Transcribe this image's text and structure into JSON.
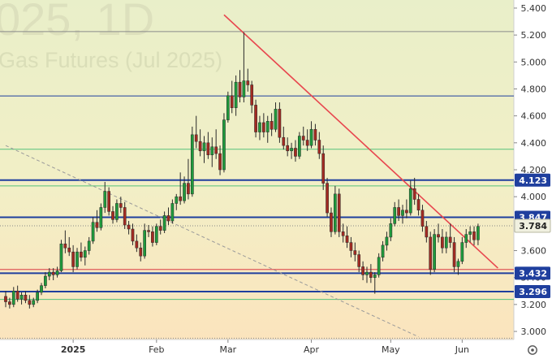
{
  "watermark": {
    "line1": "025, 1D",
    "line2": "Gas Futures (Jul 2025)"
  },
  "colors": {
    "plot_bg_top": "#e9efc9",
    "plot_bg_bottom": "#fbe6bf",
    "axis_bg": "#ffffff",
    "candle_up": "#1f9a3c",
    "candle_down": "#a32a22",
    "trend_red": "#e8474f",
    "dashed_grey": "#9a9a9a",
    "level_blue": "#1f3f9e",
    "level_green": "#55c27a",
    "level_red": "#e05a5a",
    "label_blue": "#1f3f9e",
    "label_price": "#f0f0e0"
  },
  "chart_data": {
    "type": "candlestick",
    "title": "",
    "xlabel": "",
    "ylabel": "",
    "ylim": [
      2.94,
      5.46
    ],
    "y_ticks": [
      5.4,
      5.2,
      5.0,
      4.8,
      4.6,
      4.4,
      4.2,
      4.0,
      3.6,
      3.4,
      3.2,
      3.0
    ],
    "y_tick_labels": [
      "5.400",
      "5.200",
      "5.000",
      "4.800",
      "4.600",
      "4.400",
      "4.200",
      "4.000",
      "3.600",
      "3.400",
      "3.200",
      "3.000"
    ],
    "x_tick_labels": [
      "2025",
      "Feb",
      "Mar",
      "Apr",
      "May",
      "Jun"
    ],
    "x_tick_index": [
      17,
      38,
      56,
      77,
      97,
      115
    ],
    "price_labels": [
      {
        "value": 4.123,
        "label": "4.123",
        "style": "blue"
      },
      {
        "value": 3.847,
        "label": "3.847",
        "style": "blue"
      },
      {
        "value": 3.784,
        "label": "3.784",
        "style": "price"
      },
      {
        "value": 3.432,
        "label": "3.432",
        "style": "blue"
      },
      {
        "value": 3.296,
        "label": "3.296",
        "style": "blue"
      }
    ],
    "horizontal_levels": [
      {
        "value": 5.226,
        "color": "grey"
      },
      {
        "value": 4.748,
        "color": "blue"
      },
      {
        "value": 4.352,
        "color": "green"
      },
      {
        "value": 4.123,
        "color": "blue_thick"
      },
      {
        "value": 4.08,
        "color": "green"
      },
      {
        "value": 3.847,
        "color": "blue_thick"
      },
      {
        "value": 3.784,
        "color": "dotted"
      },
      {
        "value": 3.46,
        "color": "red"
      },
      {
        "value": 3.432,
        "color": "blue_thick"
      },
      {
        "value": 3.296,
        "color": "blue_thick"
      },
      {
        "value": 3.238,
        "color": "green"
      },
      {
        "value": 2.95,
        "color": "dotted"
      }
    ],
    "trend_lines": [
      {
        "style": "solid",
        "color": "red",
        "from": {
          "i": 55,
          "v": 5.35
        },
        "to": {
          "i": 124,
          "v": 3.47
        }
      },
      {
        "style": "dashed",
        "color": "grey",
        "from": {
          "i": 0,
          "v": 4.38
        },
        "to": {
          "i": 104,
          "v": 2.96
        }
      }
    ],
    "candles": [
      [
        0,
        3.26,
        3.3,
        3.18,
        3.22
      ],
      [
        1,
        3.22,
        3.25,
        3.17,
        3.2
      ],
      [
        2,
        3.2,
        3.33,
        3.18,
        3.3
      ],
      [
        3,
        3.3,
        3.34,
        3.22,
        3.24
      ],
      [
        4,
        3.24,
        3.29,
        3.2,
        3.27
      ],
      [
        5,
        3.27,
        3.3,
        3.21,
        3.23
      ],
      [
        6,
        3.23,
        3.27,
        3.17,
        3.2
      ],
      [
        7,
        3.2,
        3.25,
        3.18,
        3.23
      ],
      [
        8,
        3.23,
        3.31,
        3.21,
        3.29
      ],
      [
        9,
        3.29,
        3.36,
        3.27,
        3.34
      ],
      [
        10,
        3.34,
        3.44,
        3.32,
        3.41
      ],
      [
        11,
        3.41,
        3.47,
        3.38,
        3.44
      ],
      [
        12,
        3.44,
        3.47,
        3.38,
        3.42
      ],
      [
        13,
        3.42,
        3.48,
        3.4,
        3.45
      ],
      [
        14,
        3.45,
        3.68,
        3.44,
        3.65
      ],
      [
        15,
        3.65,
        3.75,
        3.58,
        3.62
      ],
      [
        16,
        3.62,
        3.7,
        3.56,
        3.59
      ],
      [
        17,
        3.59,
        3.64,
        3.44,
        3.48
      ],
      [
        18,
        3.48,
        3.62,
        3.46,
        3.59
      ],
      [
        19,
        3.59,
        3.66,
        3.52,
        3.55
      ],
      [
        20,
        3.55,
        3.63,
        3.49,
        3.6
      ],
      [
        21,
        3.6,
        3.7,
        3.57,
        3.67
      ],
      [
        22,
        3.67,
        3.85,
        3.65,
        3.81
      ],
      [
        23,
        3.81,
        3.9,
        3.74,
        3.77
      ],
      [
        24,
        3.77,
        3.95,
        3.75,
        3.92
      ],
      [
        25,
        3.92,
        4.11,
        3.88,
        4.04
      ],
      [
        26,
        4.04,
        4.07,
        3.86,
        3.89
      ],
      [
        27,
        3.89,
        3.93,
        3.8,
        3.83
      ],
      [
        28,
        3.83,
        3.98,
        3.81,
        3.95
      ],
      [
        29,
        3.95,
        4.0,
        3.88,
        3.92
      ],
      [
        30,
        3.92,
        3.96,
        3.76,
        3.79
      ],
      [
        31,
        3.79,
        3.82,
        3.72,
        3.76
      ],
      [
        32,
        3.76,
        3.8,
        3.64,
        3.67
      ],
      [
        33,
        3.67,
        3.72,
        3.59,
        3.62
      ],
      [
        34,
        3.62,
        3.66,
        3.52,
        3.56
      ],
      [
        35,
        3.56,
        3.8,
        3.54,
        3.75
      ],
      [
        36,
        3.75,
        3.79,
        3.7,
        3.74
      ],
      [
        37,
        3.74,
        3.78,
        3.63,
        3.66
      ],
      [
        38,
        3.66,
        3.8,
        3.64,
        3.78
      ],
      [
        39,
        3.78,
        3.83,
        3.72,
        3.75
      ],
      [
        40,
        3.75,
        3.89,
        3.73,
        3.86
      ],
      [
        41,
        3.86,
        3.92,
        3.79,
        3.82
      ],
      [
        42,
        3.82,
        3.98,
        3.8,
        3.95
      ],
      [
        43,
        3.95,
        4.02,
        3.9,
        4.0
      ],
      [
        44,
        4.0,
        4.18,
        3.94,
        3.97
      ],
      [
        45,
        3.97,
        4.15,
        3.95,
        4.1
      ],
      [
        46,
        4.1,
        4.28,
        3.98,
        4.02
      ],
      [
        47,
        4.02,
        4.52,
        4.0,
        4.46
      ],
      [
        48,
        4.46,
        4.6,
        4.36,
        4.41
      ],
      [
        49,
        4.41,
        4.5,
        4.3,
        4.34
      ],
      [
        50,
        4.34,
        4.45,
        4.25,
        4.4
      ],
      [
        51,
        4.4,
        4.48,
        4.28,
        4.31
      ],
      [
        52,
        4.31,
        4.44,
        4.22,
        4.37
      ],
      [
        53,
        4.37,
        4.5,
        4.28,
        4.32
      ],
      [
        54,
        4.32,
        4.38,
        4.16,
        4.2
      ],
      [
        55,
        4.2,
        4.62,
        4.18,
        4.57
      ],
      [
        56,
        4.57,
        4.78,
        4.55,
        4.75
      ],
      [
        57,
        4.75,
        4.86,
        4.62,
        4.66
      ],
      [
        58,
        4.66,
        4.9,
        4.6,
        4.85
      ],
      [
        59,
        4.85,
        4.94,
        4.7,
        4.74
      ],
      [
        60,
        4.74,
        5.22,
        4.7,
        4.86
      ],
      [
        61,
        4.86,
        4.95,
        4.78,
        4.83
      ],
      [
        62,
        4.83,
        4.86,
        4.62,
        4.68
      ],
      [
        63,
        4.68,
        4.72,
        4.44,
        4.48
      ],
      [
        64,
        4.48,
        4.6,
        4.42,
        4.55
      ],
      [
        65,
        4.55,
        4.62,
        4.44,
        4.48
      ],
      [
        66,
        4.48,
        4.6,
        4.4,
        4.56
      ],
      [
        67,
        4.56,
        4.62,
        4.45,
        4.5
      ],
      [
        68,
        4.5,
        4.7,
        4.48,
        4.65
      ],
      [
        69,
        4.65,
        4.7,
        4.4,
        4.44
      ],
      [
        70,
        4.44,
        4.52,
        4.35,
        4.38
      ],
      [
        71,
        4.38,
        4.44,
        4.3,
        4.34
      ],
      [
        72,
        4.34,
        4.4,
        4.28,
        4.36
      ],
      [
        73,
        4.36,
        4.42,
        4.26,
        4.3
      ],
      [
        74,
        4.3,
        4.48,
        4.28,
        4.45
      ],
      [
        75,
        4.45,
        4.52,
        4.38,
        4.42
      ],
      [
        76,
        4.42,
        4.5,
        4.34,
        4.38
      ],
      [
        77,
        4.38,
        4.56,
        4.36,
        4.5
      ],
      [
        78,
        4.5,
        4.54,
        4.38,
        4.42
      ],
      [
        79,
        4.42,
        4.48,
        4.28,
        4.32
      ],
      [
        80,
        4.32,
        4.38,
        4.05,
        4.1
      ],
      [
        81,
        4.1,
        4.14,
        3.85,
        3.88
      ],
      [
        82,
        3.88,
        3.92,
        3.7,
        3.74
      ],
      [
        83,
        3.74,
        4.08,
        3.72,
        4.02
      ],
      [
        84,
        4.02,
        4.06,
        3.7,
        3.74
      ],
      [
        85,
        3.74,
        3.8,
        3.66,
        3.71
      ],
      [
        86,
        3.71,
        3.78,
        3.62,
        3.66
      ],
      [
        87,
        3.66,
        3.7,
        3.55,
        3.6
      ],
      [
        88,
        3.6,
        3.66,
        3.52,
        3.57
      ],
      [
        89,
        3.57,
        3.6,
        3.44,
        3.48
      ],
      [
        90,
        3.48,
        3.52,
        3.38,
        3.42
      ],
      [
        91,
        3.42,
        3.48,
        3.36,
        3.44
      ],
      [
        92,
        3.44,
        3.5,
        3.36,
        3.4
      ],
      [
        93,
        3.4,
        3.44,
        3.28,
        3.42
      ],
      [
        94,
        3.42,
        3.58,
        3.4,
        3.55
      ],
      [
        95,
        3.55,
        3.67,
        3.52,
        3.64
      ],
      [
        96,
        3.64,
        3.74,
        3.6,
        3.7
      ],
      [
        97,
        3.7,
        3.84,
        3.67,
        3.8
      ],
      [
        98,
        3.8,
        3.96,
        3.78,
        3.92
      ],
      [
        99,
        3.92,
        3.98,
        3.82,
        3.86
      ],
      [
        100,
        3.86,
        3.94,
        3.8,
        3.9
      ],
      [
        101,
        3.9,
        3.98,
        3.84,
        3.88
      ],
      [
        102,
        3.88,
        4.12,
        3.86,
        4.06
      ],
      [
        103,
        4.06,
        4.14,
        3.94,
        3.98
      ],
      [
        104,
        3.98,
        4.02,
        3.86,
        3.9
      ],
      [
        105,
        3.9,
        3.94,
        3.74,
        3.78
      ],
      [
        106,
        3.78,
        3.82,
        3.66,
        3.7
      ],
      [
        107,
        3.7,
        3.74,
        3.42,
        3.46
      ],
      [
        108,
        3.46,
        3.76,
        3.44,
        3.72
      ],
      [
        109,
        3.72,
        3.8,
        3.66,
        3.7
      ],
      [
        110,
        3.7,
        3.76,
        3.58,
        3.62
      ],
      [
        111,
        3.62,
        3.74,
        3.58,
        3.7
      ],
      [
        112,
        3.7,
        3.8,
        3.62,
        3.66
      ],
      [
        113,
        3.66,
        3.7,
        3.44,
        3.48
      ],
      [
        114,
        3.48,
        3.54,
        3.42,
        3.52
      ],
      [
        115,
        3.52,
        3.7,
        3.5,
        3.66
      ],
      [
        116,
        3.66,
        3.76,
        3.62,
        3.72
      ],
      [
        117,
        3.72,
        3.78,
        3.66,
        3.74
      ],
      [
        118,
        3.74,
        3.78,
        3.64,
        3.68
      ],
      [
        119,
        3.68,
        3.8,
        3.64,
        3.78
      ]
    ]
  }
}
